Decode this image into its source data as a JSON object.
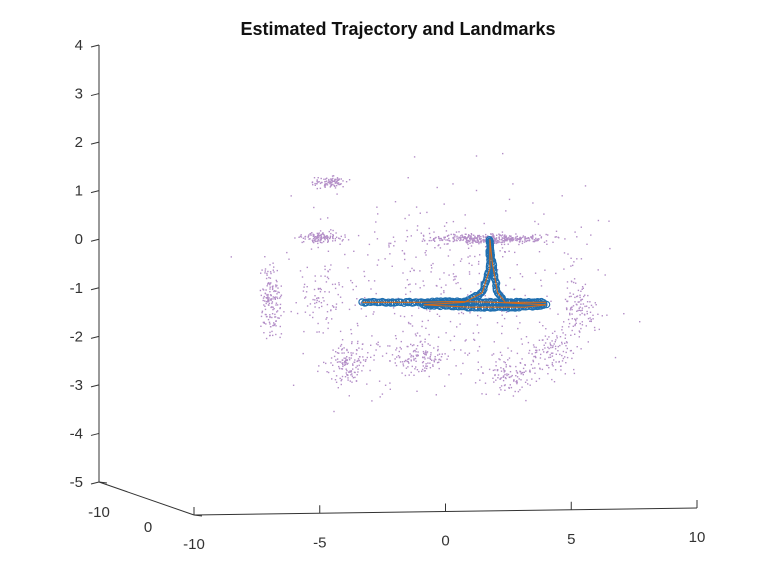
{
  "chart_data": {
    "type": "scatter",
    "title": "Estimated Trajectory and Landmarks",
    "projection": "3d",
    "grid": false,
    "legend": "none",
    "z_axis": {
      "range": [
        -5,
        4
      ],
      "ticks": [
        "-5",
        "-4",
        "-3",
        "-2",
        "-1",
        "0",
        "1",
        "2",
        "3",
        "4"
      ]
    },
    "x_axis": {
      "range": [
        -10,
        10
      ],
      "ticks": [
        "-10",
        "-5",
        "0",
        "5",
        "10"
      ]
    },
    "y_axis": {
      "range": [
        -10,
        0
      ],
      "ticks": [
        "-10",
        "0"
      ]
    },
    "colors": {
      "landmarks": "#b38ec7",
      "trajectory_markers": "#1f6fb0",
      "trajectory_line": "#d06a1c",
      "axis": "#333333"
    },
    "series": [
      {
        "kind": "landmarks",
        "marker": "point",
        "clusters": [
          {
            "center": [
              -6.8,
              -1.25
            ],
            "spread": [
              0.35,
              0.7
            ],
            "count": 160
          },
          {
            "center": [
              -4.8,
              0.05
            ],
            "spread": [
              0.8,
              0.12
            ],
            "count": 120
          },
          {
            "center": [
              -4.5,
              1.2
            ],
            "spread": [
              0.6,
              0.12
            ],
            "count": 90
          },
          {
            "center": [
              -3.8,
              -2.55
            ],
            "spread": [
              0.8,
              0.45
            ],
            "count": 140
          },
          {
            "center": [
              -1.0,
              -2.4
            ],
            "spread": [
              1.2,
              0.4
            ],
            "count": 130
          },
          {
            "center": [
              1.8,
              0.02
            ],
            "spread": [
              2.2,
              0.1
            ],
            "count": 380
          },
          {
            "center": [
              2.6,
              -2.8
            ],
            "spread": [
              1.2,
              0.4
            ],
            "count": 120
          },
          {
            "center": [
              4.2,
              -2.3
            ],
            "spread": [
              0.9,
              0.5
            ],
            "count": 110
          },
          {
            "center": [
              5.3,
              -1.4
            ],
            "spread": [
              0.7,
              0.6
            ],
            "count": 110
          },
          {
            "center": [
              -4.8,
              -1.2
            ],
            "spread": [
              0.9,
              0.6
            ],
            "count": 70
          },
          {
            "center": [
              0.0,
              -1.0
            ],
            "spread": [
              6.0,
              2.0
            ],
            "count": 420
          }
        ]
      },
      {
        "kind": "trajectory",
        "marker": "circle",
        "polyline": [
          [
            -3.2,
            -1.3
          ],
          [
            -1.0,
            -1.3
          ],
          [
            0.5,
            -1.28
          ],
          [
            2.0,
            -1.3
          ],
          [
            4.0,
            -1.35
          ],
          [
            3.2,
            -1.4
          ],
          [
            1.0,
            -1.4
          ],
          [
            -0.8,
            -1.35
          ],
          [
            0.8,
            -1.3
          ],
          [
            1.5,
            -1.1
          ],
          [
            1.8,
            -0.6
          ],
          [
            1.8,
            0.0
          ],
          [
            1.9,
            -0.5
          ],
          [
            2.1,
            -1.1
          ],
          [
            2.4,
            -1.3
          ],
          [
            4.0,
            -1.3
          ]
        ]
      }
    ]
  }
}
